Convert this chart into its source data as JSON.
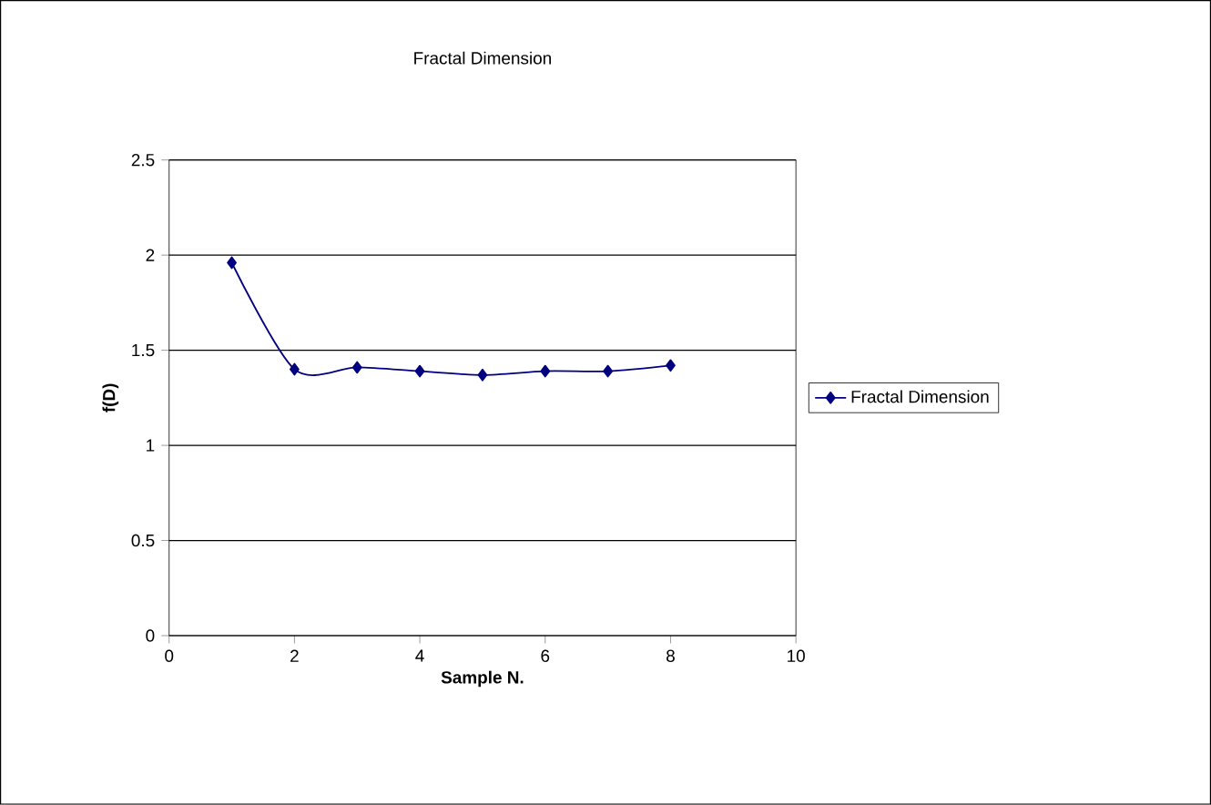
{
  "chart_data": {
    "type": "line",
    "title": "Fractal Dimension",
    "xlabel": "Sample N.",
    "ylabel": "f(D)",
    "series": [
      {
        "name": "Fractal Dimension",
        "color": "#000080",
        "x": [
          1,
          2,
          3,
          4,
          5,
          6,
          7,
          8
        ],
        "values": [
          1.96,
          1.4,
          1.41,
          1.39,
          1.37,
          1.39,
          1.39,
          1.42
        ]
      }
    ],
    "xlim": [
      0,
      10
    ],
    "xticks": [
      0,
      2,
      4,
      6,
      8,
      10
    ],
    "ylim": [
      0,
      2.5
    ],
    "yticks": [
      0,
      0.5,
      1,
      1.5,
      2,
      2.5
    ],
    "grid": "y",
    "legend": "right",
    "marker": "diamond",
    "line_style": "solid"
  }
}
